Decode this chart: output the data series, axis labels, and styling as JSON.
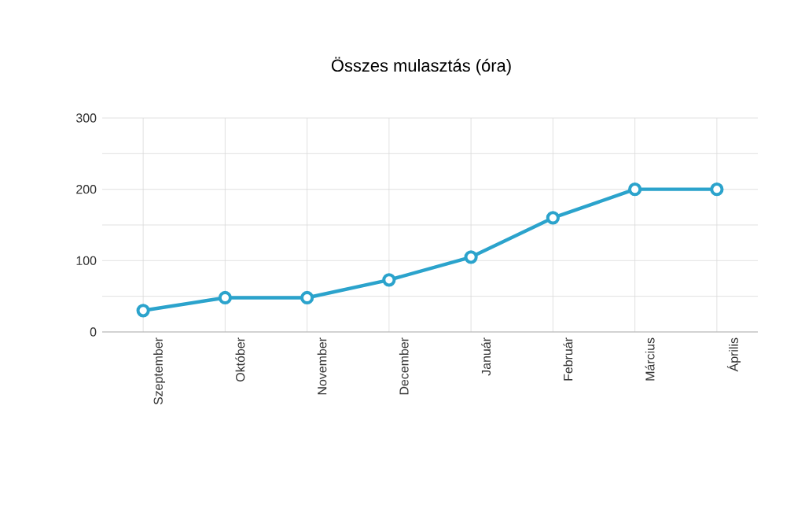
{
  "chart_data": {
    "type": "line",
    "title": "Összes mulasztás (óra)",
    "categories": [
      "Szeptember",
      "Október",
      "November",
      "December",
      "Január",
      "Február",
      "Március",
      "Április"
    ],
    "series": [
      {
        "color": "#2ba3cc",
        "values": [
          30,
          48,
          48,
          73,
          105,
          160,
          200,
          200
        ]
      }
    ],
    "ylim": [
      0,
      300
    ],
    "yticks": [
      0,
      {
        "value": 50,
        "label": null
      },
      100,
      {
        "value": 150,
        "label": null
      },
      200,
      {
        "value": 250,
        "label": null
      },
      300
    ],
    "grid": true,
    "marker": "circle",
    "line_style": "solid"
  }
}
